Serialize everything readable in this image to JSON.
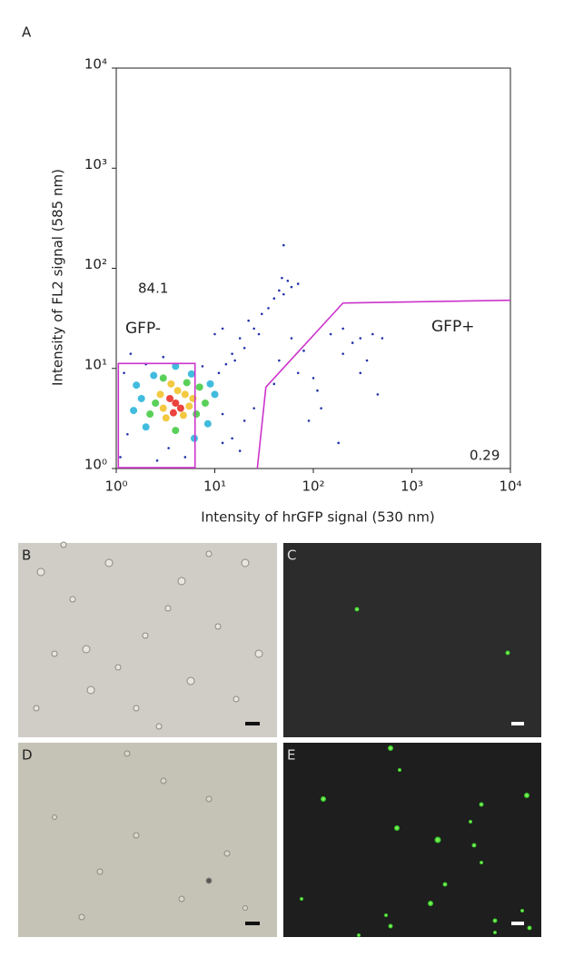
{
  "chart_data": {
    "type": "scatter",
    "panel": "A",
    "x_label": "Intensity of hrGFP signal (530 nm)",
    "y_label": "Intensity of FL2 signal (585 nm)",
    "log_x": true,
    "log_y": true,
    "xlim": [
      1,
      10000
    ],
    "ylim": [
      1,
      10000
    ],
    "xticks": [
      {
        "value": 1,
        "label": "10⁰"
      },
      {
        "value": 10,
        "label": "10¹"
      },
      {
        "value": 100,
        "label": "10²"
      },
      {
        "value": 1000,
        "label": "10³"
      },
      {
        "value": 10000,
        "label": "10⁴"
      }
    ],
    "yticks": [
      {
        "value": 1,
        "label": "10⁰"
      },
      {
        "value": 10,
        "label": "10¹"
      },
      {
        "value": 100,
        "label": "10²"
      },
      {
        "value": 1000,
        "label": "10³"
      },
      {
        "value": 10000,
        "label": "10⁴"
      }
    ],
    "series": [
      {
        "x": [
          4,
          3.5,
          4.5,
          3,
          5,
          3.8,
          4.2,
          2.8,
          5.5,
          3.2,
          4.8,
          2.5,
          6,
          2.2,
          3.6,
          5.2,
          1.8,
          2,
          6.5,
          4,
          3,
          7,
          1.5,
          1.6,
          2.4,
          5.8,
          8,
          9,
          1.3,
          1.2,
          2,
          4,
          6.2,
          3.4,
          1.1,
          5,
          8.5,
          10,
          11,
          7.5,
          3,
          12,
          13,
          2.6,
          1.4,
          15,
          18,
          20,
          25,
          28,
          30,
          22,
          35,
          40,
          45,
          50,
          55,
          60,
          48,
          12,
          50,
          70,
          10,
          16,
          15,
          20,
          18,
          25,
          12,
          60,
          80,
          150,
          200,
          300,
          400,
          250,
          350,
          450,
          100,
          120,
          90,
          180,
          300,
          200,
          500,
          70,
          110,
          40,
          45
        ],
        "values": [
          4.5,
          5,
          4,
          4,
          5.5,
          3.6,
          6,
          5.5,
          4.2,
          3.2,
          3.4,
          4.5,
          5,
          3.5,
          7,
          7.2,
          5,
          2.6,
          3.5,
          2.4,
          8,
          6.5,
          3.8,
          6.8,
          8.5,
          8.8,
          4.5,
          7,
          2.2,
          9,
          11,
          10.5,
          2,
          1.6,
          1.3,
          1.3,
          2.8,
          5.5,
          9,
          10.5,
          13,
          3.5,
          11,
          1.2,
          14,
          14,
          20,
          16,
          25,
          22,
          35,
          30,
          40,
          50,
          60,
          55,
          75,
          65,
          80,
          25,
          170,
          70,
          22,
          12,
          2,
          3,
          1.5,
          4,
          1.8,
          20,
          15,
          22,
          25,
          20,
          22,
          18,
          12,
          5.5,
          8,
          4,
          3,
          1.8,
          9,
          14,
          20,
          9,
          6,
          7,
          12
        ]
      }
    ],
    "gates": [
      {
        "name": "GFP-",
        "percent": 84.1,
        "color": "#cc33cc",
        "x": [
          1.05,
          6.3,
          6.3,
          1.05
        ],
        "y": [
          1.02,
          1.02,
          11.2,
          11.2
        ]
      },
      {
        "name": "GFP+",
        "percent": 0.29,
        "color": "#cc33cc",
        "x": [
          27,
          33,
          200,
          10000
        ],
        "y": [
          1,
          6.5,
          45,
          48
        ]
      }
    ]
  },
  "panels": [
    {
      "label": "B"
    },
    {
      "label": "C"
    },
    {
      "label": "D"
    },
    {
      "label": "E"
    }
  ]
}
